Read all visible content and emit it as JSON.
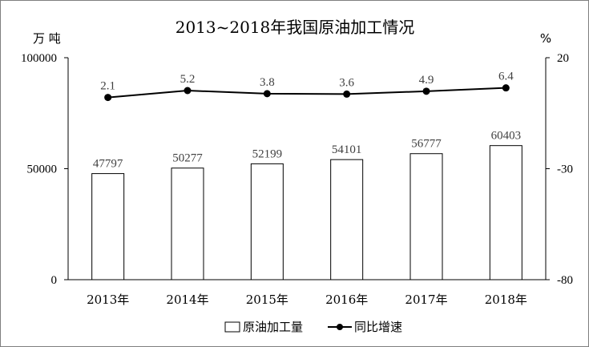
{
  "chart_data": {
    "type": "bar",
    "title": "2013~2018年我国原油加工情况",
    "categories": [
      "2013年",
      "2014年",
      "2015年",
      "2016年",
      "2017年",
      "2018年"
    ],
    "left_axis": {
      "unit": "万 吨",
      "ylim": [
        0,
        100000
      ],
      "ticks": [
        "0",
        "50000",
        "100000"
      ]
    },
    "right_axis": {
      "unit": "%",
      "ylim": [
        -80,
        20
      ],
      "ticks": [
        "-80",
        "-30",
        "20"
      ]
    },
    "series": [
      {
        "name": "原油加工量",
        "type": "bar",
        "axis": "left",
        "values": [
          47797,
          50277,
          52199,
          54101,
          56777,
          60403
        ],
        "labels": [
          "47797",
          "50277",
          "52199",
          "54101",
          "56777",
          "60403"
        ]
      },
      {
        "name": "同比增速",
        "type": "line",
        "axis": "right",
        "values": [
          2.1,
          5.2,
          3.8,
          3.6,
          4.9,
          6.4
        ],
        "labels": [
          "2.1",
          "5.2",
          "3.8",
          "3.6",
          "4.9",
          "6.4"
        ]
      }
    ],
    "grid": false,
    "legend": "bottom"
  },
  "colors": {
    "bar_fill": "#ffffff",
    "bar_stroke": "#000000",
    "line": "#000000",
    "marker": "#000000"
  }
}
